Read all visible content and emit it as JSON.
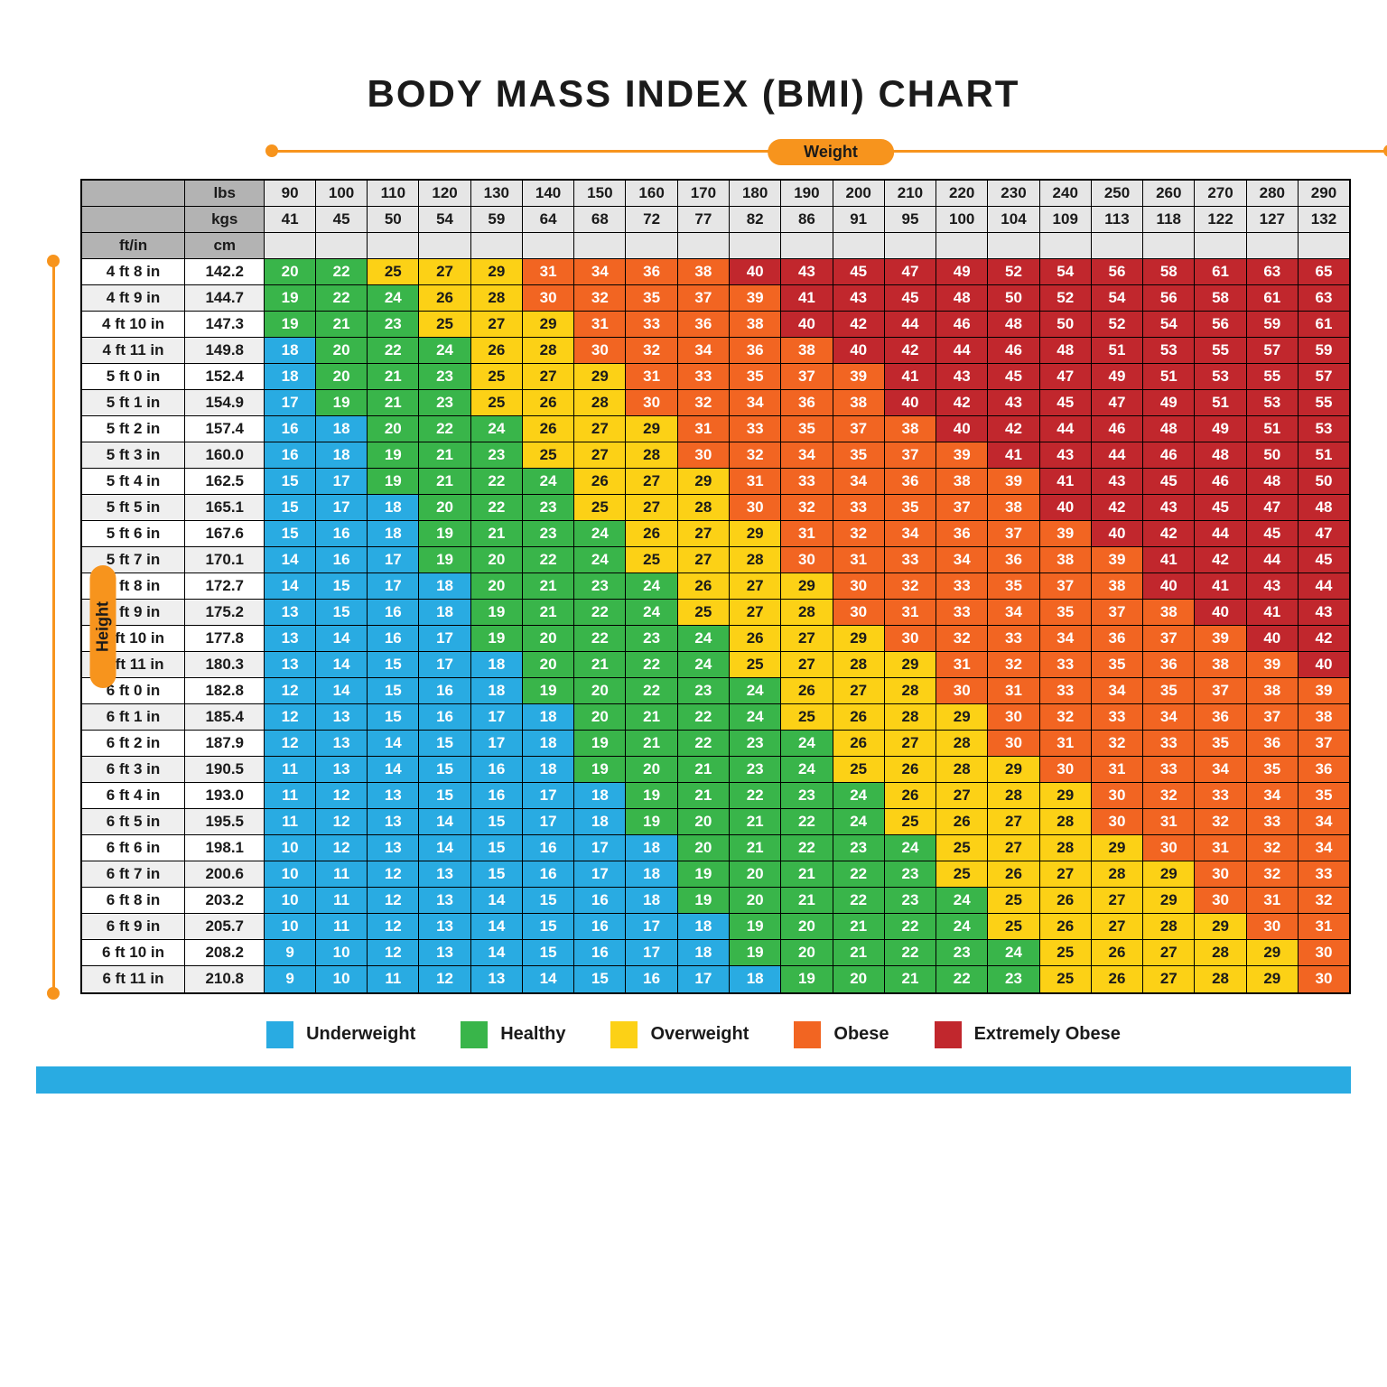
{
  "title": "BODY MASS INDEX (BMI) CHART",
  "axes": {
    "weight": "Weight",
    "height": "Height"
  },
  "headers": {
    "lbs": "lbs",
    "kgs": "kgs",
    "ftin": "ft/in",
    "cm": "cm"
  },
  "colors": {
    "underweight": "#29abe2",
    "healthy": "#39b54a",
    "overweight": "#fcd116",
    "obese": "#f26522",
    "extreme": "#c1272d",
    "header_dark": "#b3b3b3",
    "header_light": "#e6e6e6",
    "axis": "#f7941d",
    "border": "#000000",
    "bg": "#ffffff",
    "font": "Arial",
    "cell_fontsize": 17,
    "title_fontsize": 42
  },
  "legend": [
    {
      "label": "Underweight",
      "color_key": "underweight"
    },
    {
      "label": "Healthy",
      "color_key": "healthy"
    },
    {
      "label": "Overweight",
      "color_key": "overweight"
    },
    {
      "label": "Obese",
      "color_key": "obese"
    },
    {
      "label": "Extremely Obese",
      "color_key": "extreme"
    }
  ],
  "lbs": [
    90,
    100,
    110,
    120,
    130,
    140,
    150,
    160,
    170,
    180,
    190,
    200,
    210,
    220,
    230,
    240,
    250,
    260,
    270,
    280,
    290
  ],
  "kgs": [
    41,
    45,
    50,
    54,
    59,
    64,
    68,
    72,
    77,
    82,
    86,
    91,
    95,
    100,
    104,
    109,
    113,
    118,
    122,
    127,
    132
  ],
  "rows": [
    {
      "ft": "4 ft 8 in",
      "cm": "142.2",
      "v": [
        20,
        22,
        25,
        27,
        29,
        31,
        34,
        36,
        38,
        40,
        43,
        45,
        47,
        49,
        52,
        54,
        56,
        58,
        61,
        63,
        65
      ]
    },
    {
      "ft": "4 ft 9 in",
      "cm": "144.7",
      "v": [
        19,
        22,
        24,
        26,
        28,
        30,
        32,
        35,
        37,
        39,
        41,
        43,
        45,
        48,
        50,
        52,
        54,
        56,
        58,
        61,
        63
      ]
    },
    {
      "ft": "4 ft 10 in",
      "cm": "147.3",
      "v": [
        19,
        21,
        23,
        25,
        27,
        29,
        31,
        33,
        36,
        38,
        40,
        42,
        44,
        46,
        48,
        50,
        52,
        54,
        56,
        59,
        61
      ]
    },
    {
      "ft": "4 ft 11 in",
      "cm": "149.8",
      "v": [
        18,
        20,
        22,
        24,
        26,
        28,
        30,
        32,
        34,
        36,
        38,
        40,
        42,
        44,
        46,
        48,
        51,
        53,
        55,
        57,
        59
      ]
    },
    {
      "ft": "5 ft 0 in",
      "cm": "152.4",
      "v": [
        18,
        20,
        21,
        23,
        25,
        27,
        29,
        31,
        33,
        35,
        37,
        39,
        41,
        43,
        45,
        47,
        49,
        51,
        53,
        55,
        57
      ]
    },
    {
      "ft": "5 ft 1 in",
      "cm": "154.9",
      "v": [
        17,
        19,
        21,
        23,
        25,
        26,
        28,
        30,
        32,
        34,
        36,
        38,
        40,
        42,
        43,
        45,
        47,
        49,
        51,
        53,
        55
      ]
    },
    {
      "ft": "5 ft 2 in",
      "cm": "157.4",
      "v": [
        16,
        18,
        20,
        22,
        24,
        26,
        27,
        29,
        31,
        33,
        35,
        37,
        38,
        40,
        42,
        44,
        46,
        48,
        49,
        51,
        53
      ]
    },
    {
      "ft": "5 ft 3 in",
      "cm": "160.0",
      "v": [
        16,
        18,
        19,
        21,
        23,
        25,
        27,
        28,
        30,
        32,
        34,
        35,
        37,
        39,
        41,
        43,
        44,
        46,
        48,
        50,
        51
      ]
    },
    {
      "ft": "5 ft 4 in",
      "cm": "162.5",
      "v": [
        15,
        17,
        19,
        21,
        22,
        24,
        26,
        27,
        29,
        31,
        33,
        34,
        36,
        38,
        39,
        41,
        43,
        45,
        46,
        48,
        50
      ]
    },
    {
      "ft": "5 ft 5 in",
      "cm": "165.1",
      "v": [
        15,
        17,
        18,
        20,
        22,
        23,
        25,
        27,
        28,
        30,
        32,
        33,
        35,
        37,
        38,
        40,
        42,
        43,
        45,
        47,
        48
      ]
    },
    {
      "ft": "5 ft 6 in",
      "cm": "167.6",
      "v": [
        15,
        16,
        18,
        19,
        21,
        23,
        24,
        26,
        27,
        29,
        31,
        32,
        34,
        36,
        37,
        39,
        40,
        42,
        44,
        45,
        47
      ]
    },
    {
      "ft": "5 ft 7 in",
      "cm": "170.1",
      "v": [
        14,
        16,
        17,
        19,
        20,
        22,
        24,
        25,
        27,
        28,
        30,
        31,
        33,
        34,
        36,
        38,
        39,
        41,
        42,
        44,
        45
      ]
    },
    {
      "ft": "5 ft 8 in",
      "cm": "172.7",
      "v": [
        14,
        15,
        17,
        18,
        20,
        21,
        23,
        24,
        26,
        27,
        29,
        30,
        32,
        33,
        35,
        37,
        38,
        40,
        41,
        43,
        44
      ]
    },
    {
      "ft": "5 ft 9 in",
      "cm": "175.2",
      "v": [
        13,
        15,
        16,
        18,
        19,
        21,
        22,
        24,
        25,
        27,
        28,
        30,
        31,
        33,
        34,
        35,
        37,
        38,
        40,
        41,
        43
      ]
    },
    {
      "ft": "5 ft 10 in",
      "cm": "177.8",
      "v": [
        13,
        14,
        16,
        17,
        19,
        20,
        22,
        23,
        24,
        26,
        27,
        29,
        30,
        32,
        33,
        34,
        36,
        37,
        39,
        40,
        42
      ]
    },
    {
      "ft": "5 ft 11 in",
      "cm": "180.3",
      "v": [
        13,
        14,
        15,
        17,
        18,
        20,
        21,
        22,
        24,
        25,
        27,
        28,
        29,
        31,
        32,
        33,
        35,
        36,
        38,
        39,
        40
      ]
    },
    {
      "ft": "6 ft 0 in",
      "cm": "182.8",
      "v": [
        12,
        14,
        15,
        16,
        18,
        19,
        20,
        22,
        23,
        24,
        26,
        27,
        28,
        30,
        31,
        33,
        34,
        35,
        37,
        38,
        39
      ]
    },
    {
      "ft": "6 ft 1 in",
      "cm": "185.4",
      "v": [
        12,
        13,
        15,
        16,
        17,
        18,
        20,
        21,
        22,
        24,
        25,
        26,
        28,
        29,
        30,
        32,
        33,
        34,
        36,
        37,
        38
      ]
    },
    {
      "ft": "6 ft 2 in",
      "cm": "187.9",
      "v": [
        12,
        13,
        14,
        15,
        17,
        18,
        19,
        21,
        22,
        23,
        24,
        26,
        27,
        28,
        30,
        31,
        32,
        33,
        35,
        36,
        37
      ]
    },
    {
      "ft": "6 ft 3 in",
      "cm": "190.5",
      "v": [
        11,
        13,
        14,
        15,
        16,
        18,
        19,
        20,
        21,
        23,
        24,
        25,
        26,
        28,
        29,
        30,
        31,
        33,
        34,
        35,
        36
      ]
    },
    {
      "ft": "6 ft 4 in",
      "cm": "193.0",
      "v": [
        11,
        12,
        13,
        15,
        16,
        17,
        18,
        19,
        21,
        22,
        23,
        24,
        26,
        27,
        28,
        29,
        30,
        32,
        33,
        34,
        35
      ]
    },
    {
      "ft": "6 ft 5 in",
      "cm": "195.5",
      "v": [
        11,
        12,
        13,
        14,
        15,
        17,
        18,
        19,
        20,
        21,
        22,
        24,
        25,
        26,
        27,
        28,
        30,
        31,
        32,
        33,
        34
      ]
    },
    {
      "ft": "6 ft 6 in",
      "cm": "198.1",
      "v": [
        10,
        12,
        13,
        14,
        15,
        16,
        17,
        18,
        20,
        21,
        22,
        23,
        24,
        25,
        27,
        28,
        29,
        30,
        31,
        32,
        34
      ]
    },
    {
      "ft": "6 ft 7 in",
      "cm": "200.6",
      "v": [
        10,
        11,
        12,
        13,
        15,
        16,
        17,
        18,
        19,
        20,
        21,
        22,
        23,
        25,
        26,
        27,
        28,
        29,
        30,
        32,
        33
      ]
    },
    {
      "ft": "6 ft 8 in",
      "cm": "203.2",
      "v": [
        10,
        11,
        12,
        13,
        14,
        15,
        16,
        18,
        19,
        20,
        21,
        22,
        23,
        24,
        25,
        26,
        27,
        29,
        30,
        31,
        32
      ]
    },
    {
      "ft": "6 ft 9 in",
      "cm": "205.7",
      "v": [
        10,
        11,
        12,
        13,
        14,
        15,
        16,
        17,
        18,
        19,
        20,
        21,
        22,
        24,
        25,
        26,
        27,
        28,
        29,
        30,
        31
      ]
    },
    {
      "ft": "6 ft 10 in",
      "cm": "208.2",
      "v": [
        9,
        10,
        12,
        13,
        14,
        15,
        16,
        17,
        18,
        19,
        20,
        21,
        22,
        23,
        24,
        25,
        26,
        27,
        28,
        29,
        30
      ]
    },
    {
      "ft": "6 ft 11 in",
      "cm": "210.8",
      "v": [
        9,
        10,
        11,
        12,
        13,
        14,
        15,
        16,
        17,
        18,
        19,
        20,
        21,
        22,
        23,
        25,
        26,
        27,
        28,
        29,
        30
      ]
    }
  ],
  "thresholds": {
    "underweight_max": 18,
    "healthy_max": 24,
    "overweight_max": 29,
    "obese_max": 39
  }
}
